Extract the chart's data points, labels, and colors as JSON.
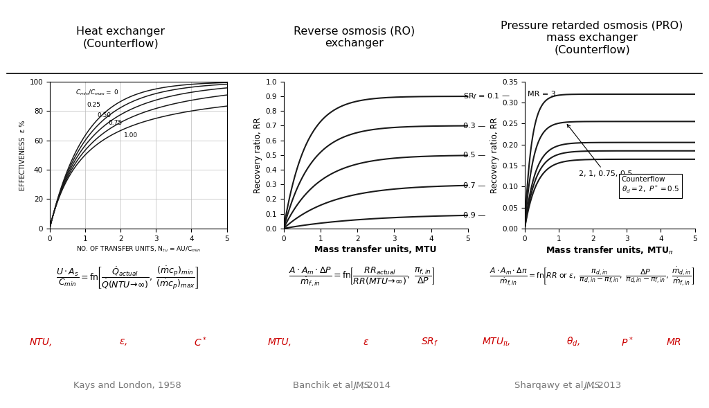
{
  "title1": "Heat exchanger\n(Counterflow)",
  "title2": "Reverse osmosis (RO)\nexchanger",
  "title3": "Pressure retarded osmosis (PRO)\nmass exchanger\n(Counterflow)",
  "xlabel1": "NO. OF TRANSFER UNITS, N$_{tu}$ = AU/C$_{min}$",
  "ylabel1": "EFFECTIVENESS  ε %",
  "xlabel2": "Mass transfer units, MTU",
  "ylabel2": "Recovery ratio, RR",
  "xlabel3": "Mass transfer units, MTU$_\\pi$",
  "ylabel3": "Recovery ratio, RR",
  "NTU_Cstar": [
    0.0,
    0.25,
    0.5,
    0.75,
    1.0
  ],
  "RO_SRf": [
    0.1,
    0.3,
    0.5,
    0.7,
    0.9
  ],
  "PRO_MR": [
    3,
    2,
    1,
    0.75,
    0.5
  ],
  "ref1": "Kays and London, 1958",
  "ref2": "Banchik et al., JMS, 2014",
  "ref3": "Sharqawy et al., JMS, 2013",
  "bg_color": "#ffffff",
  "curve_color": "#1a1a1a",
  "grid_color": "#bbbbbb",
  "red_color": "#cc0000",
  "gray_color": "#777777"
}
